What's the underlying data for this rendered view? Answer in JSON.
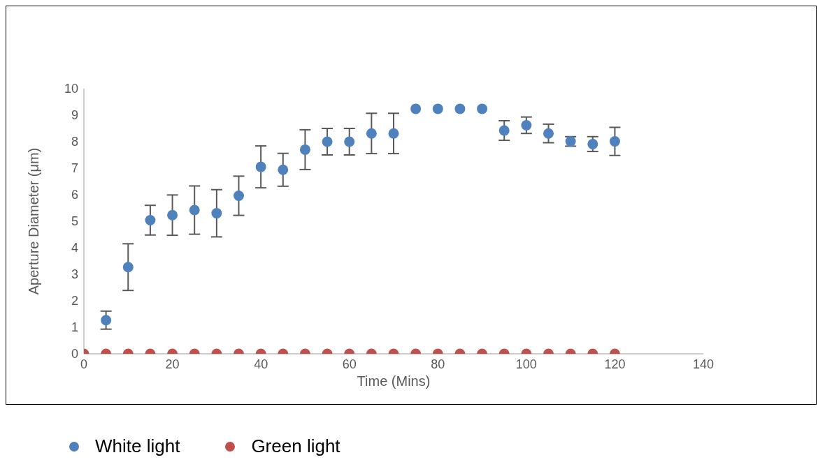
{
  "chart_data": {
    "type": "scatter",
    "xlabel": "Time (Mins)",
    "ylabel": "Aperture Diameter (μm)",
    "xlim": [
      0,
      140
    ],
    "xticks": [
      0,
      20,
      40,
      60,
      80,
      100,
      120,
      140
    ],
    "ylim": [
      0,
      10
    ],
    "yticks": [
      0,
      1,
      2,
      3,
      4,
      5,
      6,
      7,
      8,
      9,
      10
    ],
    "grid": false,
    "legend": "bottom",
    "marker": "circle",
    "series": [
      {
        "name": "White light",
        "color": "#4f81bd",
        "x": [
          5,
          10,
          15,
          20,
          25,
          30,
          35,
          40,
          45,
          50,
          55,
          60,
          65,
          70,
          75,
          80,
          85,
          90,
          95,
          100,
          105,
          110,
          115,
          120
        ],
        "values": [
          1.27,
          3.27,
          5.04,
          5.23,
          5.42,
          5.3,
          5.96,
          7.05,
          6.94,
          7.7,
          8.0,
          8.0,
          8.31,
          8.31,
          9.24,
          9.24,
          9.24,
          9.24,
          8.42,
          8.62,
          8.31,
          8.01,
          7.91,
          8.01
        ],
        "errors": [
          0.34,
          0.88,
          0.56,
          0.76,
          0.91,
          0.89,
          0.74,
          0.79,
          0.62,
          0.75,
          0.5,
          0.5,
          0.76,
          0.76,
          null,
          null,
          null,
          null,
          0.37,
          0.31,
          0.35,
          0.18,
          0.28,
          0.53
        ]
      },
      {
        "name": "Green light",
        "color": "#c0504d",
        "x": [
          0,
          5,
          10,
          15,
          20,
          25,
          30,
          35,
          40,
          45,
          50,
          55,
          60,
          65,
          70,
          75,
          80,
          85,
          90,
          95,
          100,
          105,
          110,
          115,
          120
        ],
        "values": [
          0,
          0,
          0,
          0,
          0,
          0,
          0,
          0,
          0,
          0,
          0,
          0,
          0,
          0,
          0,
          0,
          0,
          0,
          0,
          0,
          0,
          0,
          0,
          0,
          0
        ]
      }
    ]
  }
}
